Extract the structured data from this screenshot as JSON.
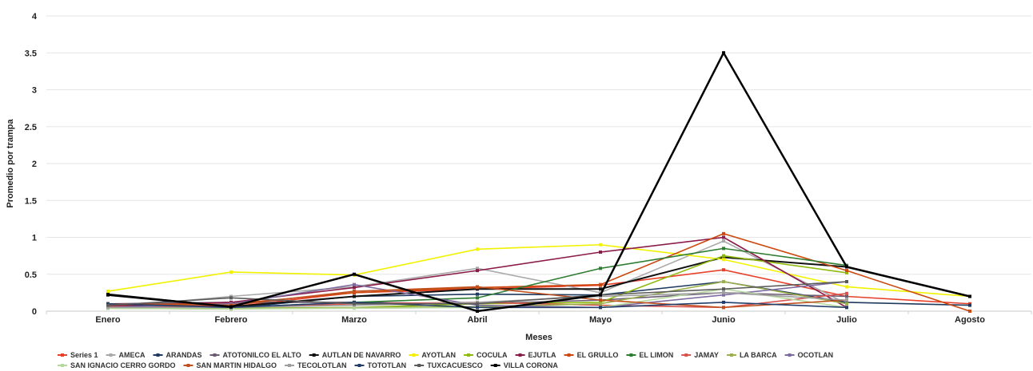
{
  "chart_data": {
    "type": "line",
    "title": "",
    "xlabel": "Meses",
    "ylabel": "Promedio por trampa",
    "ylim": [
      0,
      4
    ],
    "y_ticks": [
      "0",
      "0.5",
      "1",
      "1.5",
      "2",
      "2.5",
      "3",
      "3.5",
      "4"
    ],
    "grid": "horizontal",
    "legend_position": "bottom",
    "categories": [
      "Enero",
      "Febrero",
      "Marzo",
      "Abril",
      "Mayo",
      "Junio",
      "Julio",
      "Agosto"
    ],
    "series": [
      {
        "name": "Series 1",
        "color": "#e8412a",
        "values": [
          0.1,
          0.06,
          0.25,
          0.3,
          0.35,
          0.56,
          0.2,
          0.1
        ]
      },
      {
        "name": "AMECA",
        "color": "#a9a9a9",
        "values": [
          0.05,
          0.2,
          0.33,
          0.58,
          0.25,
          0.95,
          0.1,
          null
        ]
      },
      {
        "name": "ARANDAS",
        "color": "#1f3a5f",
        "values": [
          0.08,
          0.04,
          0.2,
          0.23,
          0.22,
          0.4,
          0.12,
          0.08
        ]
      },
      {
        "name": "ATOTONILCO EL ALTO",
        "color": "#6b5b73",
        "values": [
          0.1,
          0.12,
          0.12,
          0.1,
          0.15,
          0.25,
          0.2,
          null
        ]
      },
      {
        "name": "AUTLAN DE NAVARRO",
        "color": "#111111",
        "values": [
          0.23,
          0.06,
          0.2,
          0.3,
          0.3,
          0.73,
          0.6,
          0.2
        ]
      },
      {
        "name": "AYOTLAN",
        "color": "#f2f200",
        "values": [
          0.27,
          0.53,
          0.49,
          0.84,
          0.9,
          0.7,
          0.33,
          0.2
        ]
      },
      {
        "name": "COCULA",
        "color": "#8fba0f",
        "values": [
          0.05,
          0.04,
          0.05,
          0.1,
          0.12,
          0.75,
          0.52,
          null
        ]
      },
      {
        "name": "EJUTLA",
        "color": "#8b1c4a",
        "values": [
          0.07,
          0.12,
          0.32,
          0.55,
          0.8,
          1.0,
          0.05,
          null
        ]
      },
      {
        "name": "EL GRULLO",
        "color": "#cc4a10",
        "values": [
          0.09,
          0.1,
          0.25,
          0.32,
          0.36,
          1.05,
          0.55,
          0.0
        ]
      },
      {
        "name": "EL LIMON",
        "color": "#2e7d32",
        "values": [
          0.06,
          0.05,
          0.12,
          0.18,
          0.58,
          0.85,
          0.62,
          null
        ]
      },
      {
        "name": "JAMAY",
        "color": "#d9534f",
        "values": [
          0.06,
          0.05,
          0.1,
          0.12,
          0.08,
          0.05,
          0.24,
          null
        ]
      },
      {
        "name": "LA BARCA",
        "color": "#9bb04b",
        "values": [
          0.04,
          0.03,
          0.05,
          0.06,
          0.1,
          0.4,
          0.1,
          null
        ]
      },
      {
        "name": "OCOTLAN",
        "color": "#7e6b9f",
        "values": [
          0.05,
          0.1,
          0.36,
          0.08,
          0.05,
          0.22,
          0.4,
          null
        ]
      },
      {
        "name": "SAN IGNACIO CERRO GORDO",
        "color": "#b5d99c",
        "values": [
          0.04,
          0.03,
          0.04,
          0.05,
          0.05,
          0.3,
          0.05,
          null
        ]
      },
      {
        "name": "SAN MARTIN HIDALGO",
        "color": "#c0501e",
        "values": [
          0.1,
          0.08,
          0.27,
          0.33,
          0.15,
          0.05,
          0.15,
          null
        ]
      },
      {
        "name": "TECOLOTLAN",
        "color": "#9e9e9e",
        "values": [
          0.05,
          0.05,
          0.08,
          0.12,
          0.2,
          0.25,
          0.15,
          null
        ]
      },
      {
        "name": "TOTOTLAN",
        "color": "#233d6b",
        "values": [
          0.1,
          0.05,
          0.12,
          0.05,
          0.05,
          0.12,
          0.05,
          null
        ]
      },
      {
        "name": "TUXCACUESCO",
        "color": "#5a5a5a",
        "values": [
          0.08,
          0.18,
          0.1,
          0.1,
          0.22,
          0.3,
          0.4,
          null
        ]
      },
      {
        "name": "VILLA CORONA",
        "color": "#000000",
        "values": [
          0.22,
          0.06,
          0.5,
          0.0,
          0.22,
          3.5,
          0.6,
          0.2
        ]
      }
    ]
  }
}
